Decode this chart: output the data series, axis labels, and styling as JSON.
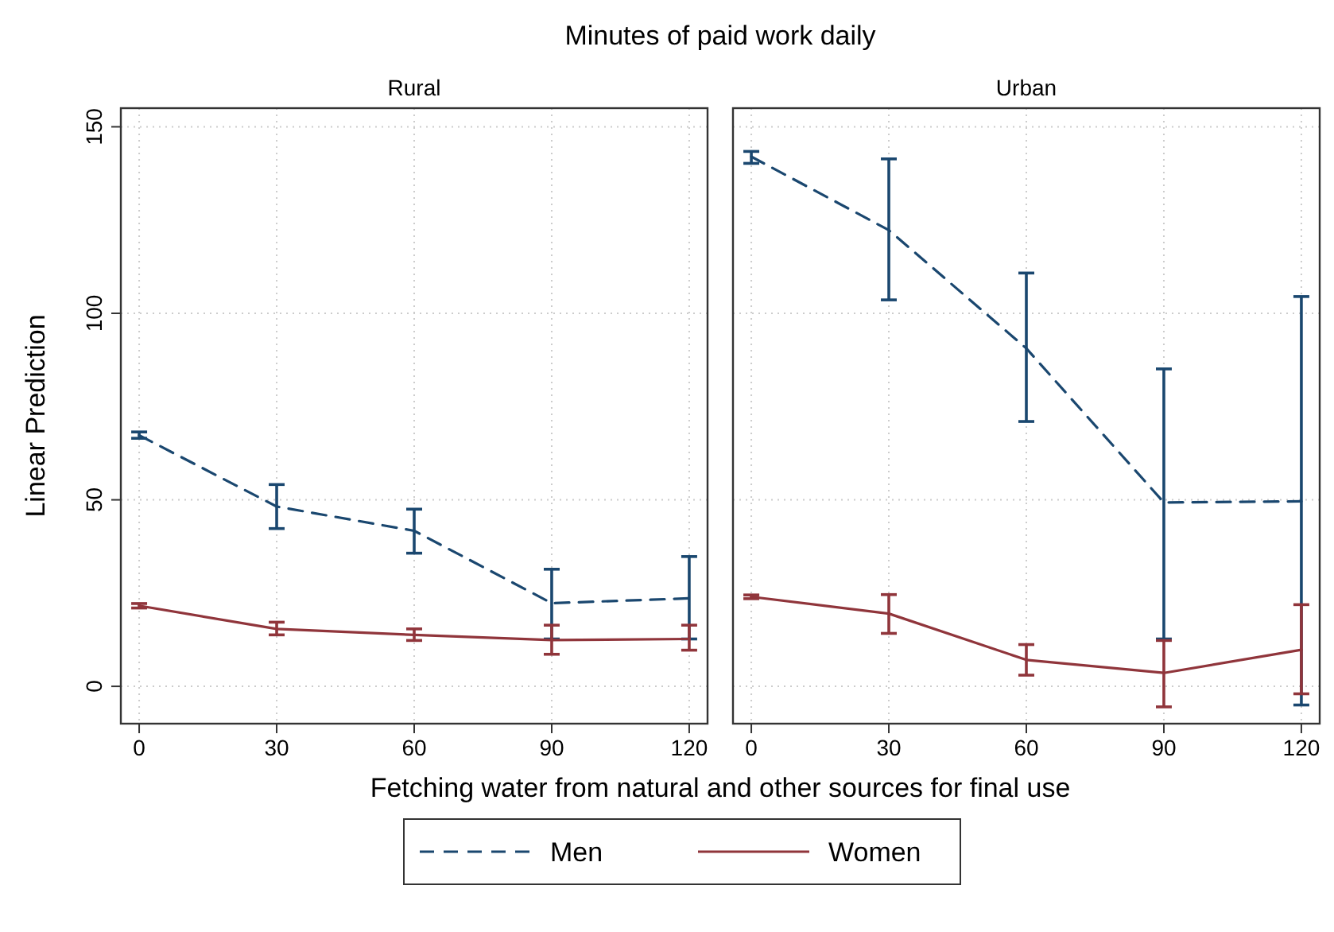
{
  "chart_data": [
    {
      "type": "line",
      "title": "Minutes of paid work daily",
      "subtitle": "Rural",
      "xlabel": "Fetching water from natural and other sources for final use",
      "ylabel": "Linear Prediction",
      "x": [
        0,
        30,
        60,
        90,
        120
      ],
      "xlim": [
        -4,
        124
      ],
      "xticks": [
        0,
        30,
        60,
        90,
        120
      ],
      "ylim": [
        -10,
        155
      ],
      "yticks": [
        0,
        50,
        100,
        150
      ],
      "grid": true,
      "legend": "bottom",
      "marker": "none",
      "series": [
        {
          "name": "Men",
          "color": "#1a476f",
          "line_style": "dashed",
          "values": [
            67.3,
            48.2,
            41.7,
            22.3,
            23.6
          ],
          "errors": [
            [
              66.5,
              68.2
            ],
            [
              42.3,
              54.1
            ],
            [
              35.7,
              47.5
            ],
            [
              12.7,
              31.4
            ],
            [
              12.7,
              34.8
            ]
          ]
        },
        {
          "name": "Women",
          "color": "#90353b",
          "line_style": "solid",
          "values": [
            21.6,
            15.4,
            13.8,
            12.4,
            12.7
          ],
          "errors": [
            [
              21,
              22.2
            ],
            [
              13.8,
              17.2
            ],
            [
              12.3,
              15.4
            ],
            [
              8.6,
              16.4
            ],
            [
              9.7,
              16.4
            ]
          ]
        }
      ]
    },
    {
      "type": "line",
      "subtitle": "Urban",
      "x": [
        0,
        30,
        60,
        90,
        120
      ],
      "xlim": [
        -4,
        124
      ],
      "xticks": [
        0,
        30,
        60,
        90,
        120
      ],
      "ylim": [
        -10,
        155
      ],
      "yticks": [
        0,
        50,
        100,
        150
      ],
      "grid": true,
      "tick_labels": "x",
      "marker": "none",
      "series": [
        {
          "color": "#1a476f",
          "line_style": "dashed",
          "values": [
            142,
            122.3,
            90.6,
            49.3,
            49.6
          ],
          "errors": [
            [
              140.2,
              143.4
            ],
            [
              103.6,
              141.4
            ],
            [
              71,
              110.8
            ],
            [
              12.7,
              85.1
            ],
            [
              -5,
              104.5
            ]
          ]
        },
        {
          "color": "#90353b",
          "line_style": "solid",
          "values": [
            24,
            19.5,
            7.1,
            3.6,
            9.8
          ],
          "errors": [
            [
              23.5,
              24.5
            ],
            [
              14.2,
              24.6
            ],
            [
              3,
              11.2
            ],
            [
              -5.5,
              12.3
            ],
            [
              -2,
              21.9
            ]
          ]
        }
      ]
    }
  ]
}
